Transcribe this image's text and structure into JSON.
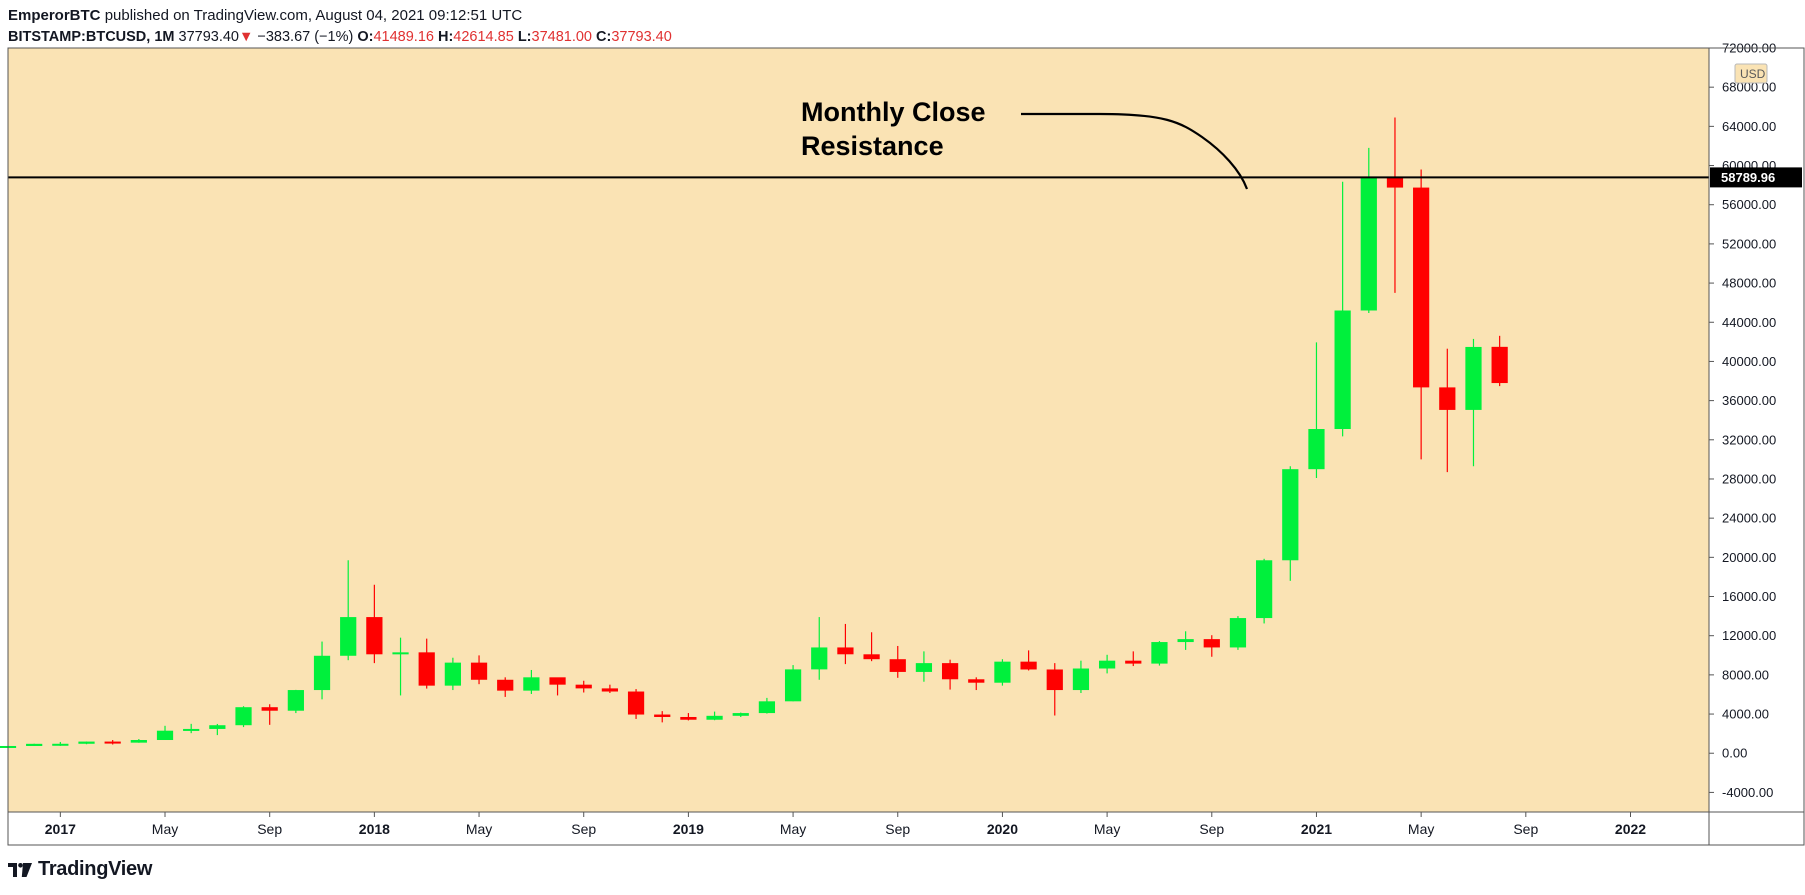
{
  "header": {
    "author": "EmperorBTC",
    "published_text": "published on TradingView.com, August 04, 2021 09:12:51 UTC",
    "symbol": "BITSTAMP:BTCUSD, 1M",
    "last_price": "37793.40",
    "arrow": "▼",
    "change": "−383.67 (−1%)",
    "o_label": "O:",
    "o_value": "41489.16",
    "h_label": "H:",
    "h_value": "42614.85",
    "l_label": "L:",
    "l_value": "37481.00",
    "c_label": "C:",
    "c_value": "37793.40"
  },
  "footer": {
    "brand": "TradingView"
  },
  "colors": {
    "background": "#fae3b4",
    "up": "#00f03c",
    "down": "#ff0000",
    "down_text": "#e03131",
    "line": "#000000"
  },
  "chart_data": {
    "type": "candlestick",
    "currency": "USD",
    "ylim": [
      -6000,
      72000
    ],
    "y_ticks": [
      -4000,
      0,
      4000,
      8000,
      12000,
      16000,
      20000,
      24000,
      28000,
      32000,
      36000,
      40000,
      44000,
      48000,
      52000,
      56000,
      60000,
      64000,
      68000,
      72000
    ],
    "x_range": [
      "2016-11",
      "2022-04"
    ],
    "x_ticks": [
      {
        "date": "2017-01",
        "label": "2017",
        "bold": true
      },
      {
        "date": "2017-05",
        "label": "May",
        "bold": false
      },
      {
        "date": "2017-09",
        "label": "Sep",
        "bold": false
      },
      {
        "date": "2018-01",
        "label": "2018",
        "bold": true
      },
      {
        "date": "2018-05",
        "label": "May",
        "bold": false
      },
      {
        "date": "2018-09",
        "label": "Sep",
        "bold": false
      },
      {
        "date": "2019-01",
        "label": "2019",
        "bold": true
      },
      {
        "date": "2019-05",
        "label": "May",
        "bold": false
      },
      {
        "date": "2019-09",
        "label": "Sep",
        "bold": false
      },
      {
        "date": "2020-01",
        "label": "2020",
        "bold": true
      },
      {
        "date": "2020-05",
        "label": "May",
        "bold": false
      },
      {
        "date": "2020-09",
        "label": "Sep",
        "bold": false
      },
      {
        "date": "2021-01",
        "label": "2021",
        "bold": true
      },
      {
        "date": "2021-05",
        "label": "May",
        "bold": false
      },
      {
        "date": "2021-09",
        "label": "Sep",
        "bold": false
      },
      {
        "date": "2022-01",
        "label": "2022",
        "bold": true
      }
    ],
    "candles": [
      {
        "date": "2016-11",
        "o": 700,
        "h": 750,
        "l": 690,
        "c": 740
      },
      {
        "date": "2016-12",
        "o": 740,
        "h": 970,
        "l": 740,
        "c": 960
      },
      {
        "date": "2017-01",
        "o": 960,
        "h": 1150,
        "l": 750,
        "c": 965
      },
      {
        "date": "2017-02",
        "o": 965,
        "h": 1200,
        "l": 920,
        "c": 1190
      },
      {
        "date": "2017-03",
        "o": 1190,
        "h": 1350,
        "l": 890,
        "c": 1080
      },
      {
        "date": "2017-04",
        "o": 1080,
        "h": 1450,
        "l": 1070,
        "c": 1350
      },
      {
        "date": "2017-05",
        "o": 1350,
        "h": 2800,
        "l": 1350,
        "c": 2300
      },
      {
        "date": "2017-06",
        "o": 2300,
        "h": 3000,
        "l": 2050,
        "c": 2480
      },
      {
        "date": "2017-07",
        "o": 2480,
        "h": 2990,
        "l": 1850,
        "c": 2860
      },
      {
        "date": "2017-08",
        "o": 2860,
        "h": 4800,
        "l": 2670,
        "c": 4700
      },
      {
        "date": "2017-09",
        "o": 4700,
        "h": 5000,
        "l": 2900,
        "c": 4340
      },
      {
        "date": "2017-10",
        "o": 4340,
        "h": 6470,
        "l": 4100,
        "c": 6450
      },
      {
        "date": "2017-11",
        "o": 6450,
        "h": 11400,
        "l": 5500,
        "c": 9950
      },
      {
        "date": "2017-12",
        "o": 9950,
        "h": 19700,
        "l": 9500,
        "c": 13900
      },
      {
        "date": "2018-01",
        "o": 13900,
        "h": 17200,
        "l": 9200,
        "c": 10100
      },
      {
        "date": "2018-02",
        "o": 10100,
        "h": 11800,
        "l": 5900,
        "c": 10300
      },
      {
        "date": "2018-03",
        "o": 10300,
        "h": 11700,
        "l": 6600,
        "c": 6900
      },
      {
        "date": "2018-04",
        "o": 6900,
        "h": 9750,
        "l": 6450,
        "c": 9250
      },
      {
        "date": "2018-05",
        "o": 9250,
        "h": 9990,
        "l": 7050,
        "c": 7500
      },
      {
        "date": "2018-06",
        "o": 7500,
        "h": 7750,
        "l": 5750,
        "c": 6390
      },
      {
        "date": "2018-07",
        "o": 6390,
        "h": 8500,
        "l": 6050,
        "c": 7750
      },
      {
        "date": "2018-08",
        "o": 7750,
        "h": 7500,
        "l": 5900,
        "c": 7000
      },
      {
        "date": "2018-09",
        "o": 7000,
        "h": 7400,
        "l": 6200,
        "c": 6620
      },
      {
        "date": "2018-10",
        "o": 6620,
        "h": 7000,
        "l": 6150,
        "c": 6300
      },
      {
        "date": "2018-11",
        "o": 6300,
        "h": 6550,
        "l": 3500,
        "c": 3950
      },
      {
        "date": "2018-12",
        "o": 3950,
        "h": 4300,
        "l": 3150,
        "c": 3700
      },
      {
        "date": "2019-01",
        "o": 3700,
        "h": 4100,
        "l": 3350,
        "c": 3420
      },
      {
        "date": "2019-02",
        "o": 3420,
        "h": 4250,
        "l": 3370,
        "c": 3820
      },
      {
        "date": "2019-03",
        "o": 3820,
        "h": 4150,
        "l": 3700,
        "c": 4100
      },
      {
        "date": "2019-04",
        "o": 4100,
        "h": 5650,
        "l": 4050,
        "c": 5300
      },
      {
        "date": "2019-05",
        "o": 5300,
        "h": 9000,
        "l": 5300,
        "c": 8560
      },
      {
        "date": "2019-06",
        "o": 8560,
        "h": 13900,
        "l": 7500,
        "c": 10800
      },
      {
        "date": "2019-07",
        "o": 10800,
        "h": 13200,
        "l": 9100,
        "c": 10100
      },
      {
        "date": "2019-08",
        "o": 10100,
        "h": 12350,
        "l": 9400,
        "c": 9600
      },
      {
        "date": "2019-09",
        "o": 9600,
        "h": 10950,
        "l": 7700,
        "c": 8300
      },
      {
        "date": "2019-10",
        "o": 8300,
        "h": 10400,
        "l": 7300,
        "c": 9200
      },
      {
        "date": "2019-11",
        "o": 9200,
        "h": 9550,
        "l": 6500,
        "c": 7550
      },
      {
        "date": "2019-12",
        "o": 7550,
        "h": 7750,
        "l": 6450,
        "c": 7200
      },
      {
        "date": "2020-01",
        "o": 7200,
        "h": 9600,
        "l": 6900,
        "c": 9350
      },
      {
        "date": "2020-02",
        "o": 9350,
        "h": 10500,
        "l": 8450,
        "c": 8550
      },
      {
        "date": "2020-03",
        "o": 8550,
        "h": 9200,
        "l": 3850,
        "c": 6450
      },
      {
        "date": "2020-04",
        "o": 6450,
        "h": 9450,
        "l": 6150,
        "c": 8650
      },
      {
        "date": "2020-05",
        "o": 8650,
        "h": 10050,
        "l": 8150,
        "c": 9450
      },
      {
        "date": "2020-06",
        "o": 9450,
        "h": 10400,
        "l": 8900,
        "c": 9150
      },
      {
        "date": "2020-07",
        "o": 9150,
        "h": 11450,
        "l": 8950,
        "c": 11350
      },
      {
        "date": "2020-08",
        "o": 11350,
        "h": 12450,
        "l": 10550,
        "c": 11650
      },
      {
        "date": "2020-09",
        "o": 11650,
        "h": 12050,
        "l": 9850,
        "c": 10800
      },
      {
        "date": "2020-10",
        "o": 10800,
        "h": 14000,
        "l": 10550,
        "c": 13800
      },
      {
        "date": "2020-11",
        "o": 13800,
        "h": 19850,
        "l": 13250,
        "c": 19700
      },
      {
        "date": "2020-12",
        "o": 19700,
        "h": 29300,
        "l": 17600,
        "c": 29000
      },
      {
        "date": "2021-01",
        "o": 29000,
        "h": 41950,
        "l": 28100,
        "c": 33100
      },
      {
        "date": "2021-02",
        "o": 33100,
        "h": 58350,
        "l": 32350,
        "c": 45200
      },
      {
        "date": "2021-03",
        "o": 45200,
        "h": 61800,
        "l": 44950,
        "c": 58800
      },
      {
        "date": "2021-04",
        "o": 58800,
        "h": 64900,
        "l": 47000,
        "c": 57750
      },
      {
        "date": "2021-05",
        "o": 57750,
        "h": 59600,
        "l": 30000,
        "c": 37350
      },
      {
        "date": "2021-06",
        "o": 37350,
        "h": 41300,
        "l": 28700,
        "c": 35050
      },
      {
        "date": "2021-07",
        "o": 35050,
        "h": 42300,
        "l": 29300,
        "c": 41480
      },
      {
        "date": "2021-08",
        "o": 41489.16,
        "h": 42614.85,
        "l": 37481.0,
        "c": 37793.4
      }
    ],
    "resistance": {
      "value": 58789.96,
      "label": "58789.96"
    },
    "annotation": {
      "line1": "Monthly Close",
      "line2": "Resistance"
    }
  }
}
